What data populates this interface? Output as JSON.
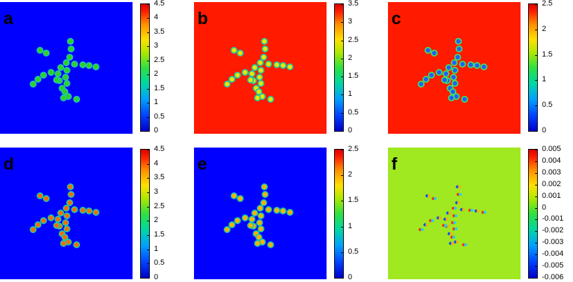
{
  "panels": [
    {
      "label": "a",
      "background": "#0000ff",
      "spot_color": "#30d020",
      "ticks": [
        "4.5",
        "4",
        "3.5",
        "3",
        "2.5",
        "2",
        "1.5",
        "1",
        "0.5",
        "0"
      ]
    },
    {
      "label": "b",
      "background": "#ff1a00",
      "spot_color": "#e8e800",
      "ticks": [
        "3.5",
        "3",
        "2.5",
        "2",
        "1.5",
        "1",
        "0.5",
        "0"
      ]
    },
    {
      "label": "c",
      "background": "#ff1a00",
      "spot_color": "#2060ff",
      "ticks": [
        "2.5",
        "2",
        "1.5",
        "1",
        "0.5",
        "0"
      ]
    },
    {
      "label": "d",
      "background": "#0000ff",
      "spot_color": "#ff6a00",
      "ticks": [
        "4.5",
        "4",
        "3.5",
        "3",
        "2.5",
        "2",
        "1.5",
        "1",
        "0.5",
        "0"
      ]
    },
    {
      "label": "e",
      "background": "#0000ff",
      "spot_color": "#ffb000",
      "ticks": [
        "2.5",
        "2",
        "1.5",
        "1",
        "0.5",
        "0"
      ]
    },
    {
      "label": "f",
      "background": "#a0e820",
      "spot_color": "#ff3000",
      "ticks": [
        "0.005",
        "0.004",
        "0.003",
        "0.002",
        "0.001",
        "0",
        "-0.001",
        "-0.002",
        "-0.003",
        "-0.004",
        "-0.005",
        "-0.006"
      ]
    }
  ]
}
